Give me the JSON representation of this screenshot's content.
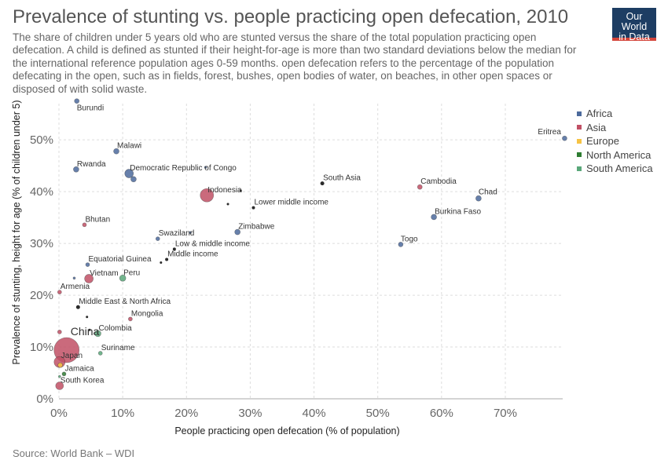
{
  "header": {
    "title": "Prevalence of stunting vs. people practicing open defecation, 2010",
    "subtitle": "The share of children under 5 years old who are stunted versus the share of the total population practicing open defecation. A child is defined as stunted if their height-for-age is more than two standard deviations below the median for the international reference population ages 0-59 months. open defecation refers to the percentage of the population defecating in the open, such as in fields, forest, bushes, open bodies of water, on beaches, in other open spaces or disposed of with solid waste.",
    "logo_line1": "Our World",
    "logo_line2": "in Data"
  },
  "source": "Source: World Bank – WDI",
  "legend": [
    {
      "label": "Africa",
      "color": "#4c6a9c"
    },
    {
      "label": "Asia",
      "color": "#c15065"
    },
    {
      "label": "Europe",
      "color": "#f6c344"
    },
    {
      "label": "North America",
      "color": "#2e7d32"
    },
    {
      "label": "South America",
      "color": "#5aa87a"
    }
  ],
  "chart_data": {
    "type": "scatter",
    "title": "Prevalence of stunting vs. people practicing open defecation, 2010",
    "xlabel": "People practicing open defecation (% of population)",
    "ylabel": "Prevalence of stunting, height for age (% of children under 5)",
    "xlim": [
      0,
      79
    ],
    "ylim": [
      0,
      57
    ],
    "x_ticks": [
      "0%",
      "10%",
      "20%",
      "30%",
      "40%",
      "50%",
      "60%",
      "70%"
    ],
    "y_ticks": [
      "0%",
      "10%",
      "20%",
      "30%",
      "40%",
      "50%"
    ],
    "grid": true,
    "legend_position": "right",
    "colors": {
      "Africa": "#4c6a9c",
      "Asia": "#c15065",
      "Europe": "#f6c344",
      "North America": "#2e7d32",
      "South America": "#5aa87a",
      "Aggregate": "#2b2b2b"
    },
    "points": [
      {
        "label": "Burundi",
        "x": 2.8,
        "y": 57.5,
        "group": "Africa",
        "size": 3
      },
      {
        "label": "Malawi",
        "x": 9.0,
        "y": 47.8,
        "group": "Africa",
        "size": 3.5
      },
      {
        "label": "Rwanda",
        "x": 2.7,
        "y": 44.3,
        "group": "Africa",
        "size": 3.5
      },
      {
        "label": "Democratic Republic of Congo",
        "x": 11.0,
        "y": 43.5,
        "group": "Africa",
        "size": 5.5
      },
      {
        "label": "",
        "x": 11.7,
        "y": 42.4,
        "group": "Africa",
        "size": 3.5
      },
      {
        "label": "",
        "x": 23.0,
        "y": 44.7,
        "group": "Africa",
        "size": 1.5
      },
      {
        "label": "Indonesia",
        "x": 23.2,
        "y": 39.3,
        "group": "Asia",
        "size": 8.5
      },
      {
        "label": "",
        "x": 28.5,
        "y": 40.2,
        "group": "Aggregate",
        "size": 1.5
      },
      {
        "label": "",
        "x": 26.5,
        "y": 37.6,
        "group": "Aggregate",
        "size": 1.5
      },
      {
        "label": "Lower middle income",
        "x": 30.5,
        "y": 36.9,
        "group": "Aggregate",
        "size": 2
      },
      {
        "label": "South Asia",
        "x": 41.3,
        "y": 41.6,
        "group": "Aggregate",
        "size": 2.5
      },
      {
        "label": "Cambodia",
        "x": 56.6,
        "y": 40.9,
        "group": "Asia",
        "size": 3
      },
      {
        "label": "Chad",
        "x": 65.8,
        "y": 38.7,
        "group": "Africa",
        "size": 3.5
      },
      {
        "label": "Burkina Faso",
        "x": 58.8,
        "y": 35.1,
        "group": "Africa",
        "size": 3.5
      },
      {
        "label": "Togo",
        "x": 53.6,
        "y": 29.8,
        "group": "Africa",
        "size": 3
      },
      {
        "label": "Eritrea",
        "x": 79.3,
        "y": 50.3,
        "group": "Africa",
        "size": 3
      },
      {
        "label": "Bhutan",
        "x": 4.0,
        "y": 33.6,
        "group": "Asia",
        "size": 2.5
      },
      {
        "label": "Zimbabwe",
        "x": 28.0,
        "y": 32.2,
        "group": "Africa",
        "size": 3.5
      },
      {
        "label": "Swaziland",
        "x": 15.5,
        "y": 30.9,
        "group": "Africa",
        "size": 2.5
      },
      {
        "label": "",
        "x": 20.6,
        "y": 32.1,
        "group": "Africa",
        "size": 1.5
      },
      {
        "label": "Low & middle income",
        "x": 18.1,
        "y": 28.9,
        "group": "Aggregate",
        "size": 2
      },
      {
        "label": "Middle income",
        "x": 16.9,
        "y": 26.9,
        "group": "Aggregate",
        "size": 2
      },
      {
        "label": "",
        "x": 16.0,
        "y": 26.3,
        "group": "Aggregate",
        "size": 1.5
      },
      {
        "label": "Equatorial Guinea",
        "x": 4.5,
        "y": 25.9,
        "group": "Africa",
        "size": 2.5
      },
      {
        "label": "Vietnam",
        "x": 4.7,
        "y": 23.2,
        "group": "Asia",
        "size": 5.5
      },
      {
        "label": "Peru",
        "x": 10.0,
        "y": 23.3,
        "group": "South America",
        "size": 4
      },
      {
        "label": "",
        "x": 2.4,
        "y": 23.3,
        "group": "Africa",
        "size": 1.5
      },
      {
        "label": "Armenia",
        "x": 0.1,
        "y": 20.6,
        "group": "Asia",
        "size": 2.5
      },
      {
        "label": "Middle East & North Africa",
        "x": 3.0,
        "y": 17.7,
        "group": "Aggregate",
        "size": 2.5
      },
      {
        "label": "",
        "x": 4.4,
        "y": 15.8,
        "group": "Aggregate",
        "size": 1.5
      },
      {
        "label": "Mongolia",
        "x": 11.2,
        "y": 15.4,
        "group": "Asia",
        "size": 2.5
      },
      {
        "label": "Colombia",
        "x": 6.1,
        "y": 12.6,
        "group": "South America",
        "size": 4
      },
      {
        "label": "",
        "x": 4.8,
        "y": 13.3,
        "group": "Aggregate",
        "size": 1.5
      },
      {
        "label": "",
        "x": 0.1,
        "y": 12.9,
        "group": "Asia",
        "size": 2.5
      },
      {
        "label": "China",
        "x": 1.2,
        "y": 9.4,
        "group": "Asia",
        "size": 16
      },
      {
        "label": "Suriname",
        "x": 6.5,
        "y": 8.8,
        "group": "South America",
        "size": 2.5
      },
      {
        "label": "Japan",
        "x": 0.1,
        "y": 7.1,
        "group": "Asia",
        "size": 7
      },
      {
        "label": "",
        "x": 0.2,
        "y": 6.5,
        "group": "Europe",
        "size": 3
      },
      {
        "label": "Jamaica",
        "x": 0.8,
        "y": 4.8,
        "group": "North America",
        "size": 2.5
      },
      {
        "label": "South Korea",
        "x": 0.1,
        "y": 2.5,
        "group": "Asia",
        "size": 5
      },
      {
        "label": "",
        "x": 0.1,
        "y": 4.3,
        "group": "South America",
        "size": 1.5
      }
    ]
  }
}
